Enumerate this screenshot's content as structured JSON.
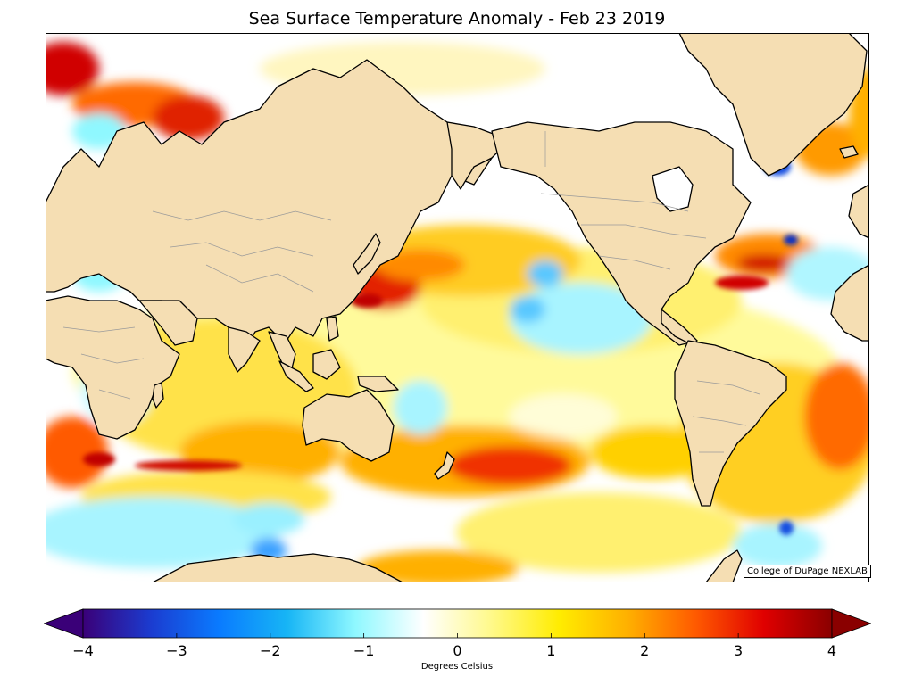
{
  "title": "Sea Surface Temperature Anomaly - Feb 23 2019",
  "credit": "College of DuPage NEXLAB",
  "colorbar": {
    "label": "Degrees Celsius",
    "ticks": [
      "−4",
      "−3",
      "−2",
      "−1",
      "0",
      "1",
      "2",
      "3",
      "4"
    ],
    "min": -4,
    "max": 4,
    "stops": [
      "#3a0078",
      "#1b3cd0",
      "#0a7bff",
      "#17b5f5",
      "#8ff8ff",
      "#ffffff",
      "#fff98a",
      "#ffec00",
      "#ffb000",
      "#ff5a00",
      "#e00000",
      "#8a0000"
    ]
  },
  "colors": {
    "land": "#f5deb3",
    "ocean": "#ffffff",
    "coastline": "#000000",
    "borders": "#9a9a9a",
    "warm": "#ff9f00",
    "hot": "#e00000",
    "cool": "#8ff8ff",
    "cold": "#0a7bff"
  }
}
